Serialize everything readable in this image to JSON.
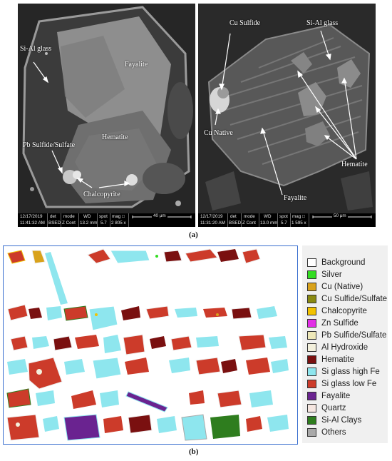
{
  "panel_a": {
    "left": {
      "labels": {
        "si_al_glass": "Si-Al glass",
        "fayalite": "Fayalite",
        "hematite": "Hematite",
        "pb_sulfide": "Pb Sulfide/Sulfate",
        "chalcopyrite": "Chalcopyrite"
      },
      "databar": {
        "date": "12/17/2019",
        "time": "11:41:32 AM",
        "det_h": "det",
        "det_v": "BSED",
        "mode_h": "mode",
        "mode_v": "Z Cont",
        "wd_h": "WD",
        "wd_v": "13.2 mm",
        "spot_h": "spot",
        "spot_v": "5.7",
        "mag_h": "mag □",
        "mag_v": "2 805 x",
        "scale": "40 μm"
      }
    },
    "right": {
      "labels": {
        "cu_sulfide": "Cu Sulfide",
        "si_al_glass": "Si-Al glass",
        "cu_native": "Cu Native",
        "hematite": "Hematite",
        "fayalite": "Fayalite"
      },
      "databar": {
        "date": "12/17/2019",
        "time": "11:31:20 AM",
        "det_h": "det",
        "det_v": "BSED",
        "mode_h": "mode",
        "mode_v": "Z Cont",
        "wd_h": "WD",
        "wd_v": "13.0 mm",
        "spot_h": "spot",
        "spot_v": "5.7",
        "mag_h": "mag □",
        "mag_v": "1 595 x",
        "scale": "50 μm"
      }
    },
    "caption": "(a)"
  },
  "panel_b": {
    "legend": [
      {
        "label": "Background",
        "color": "#ffffff"
      },
      {
        "label": "Silver",
        "color": "#33dd22"
      },
      {
        "label": "Cu (Native)",
        "color": "#d9a21b"
      },
      {
        "label": "Cu Sulfide/Sulfate",
        "color": "#8a8a12"
      },
      {
        "label": "Chalcopyrite",
        "color": "#f2c200"
      },
      {
        "label": "Zn Sulfide",
        "color": "#e22fe6"
      },
      {
        "label": "Pb Sulfide/Sulfate",
        "color": "#eee8b8"
      },
      {
        "label": "Al Hydroxide",
        "color": "#f3f0dc"
      },
      {
        "label": "Hematite",
        "color": "#7a1010"
      },
      {
        "label": "Si glass high Fe",
        "color": "#8ee6ee"
      },
      {
        "label": "Si glass low Fe",
        "color": "#cc3b2a"
      },
      {
        "label": "Fayalite",
        "color": "#6a2390"
      },
      {
        "label": "Quartz",
        "color": "#f5e6e0"
      },
      {
        "label": "Si-Al Clays",
        "color": "#2e7d1e"
      },
      {
        "label": "Others",
        "color": "#a9a9a9"
      }
    ],
    "caption": "(b)"
  }
}
